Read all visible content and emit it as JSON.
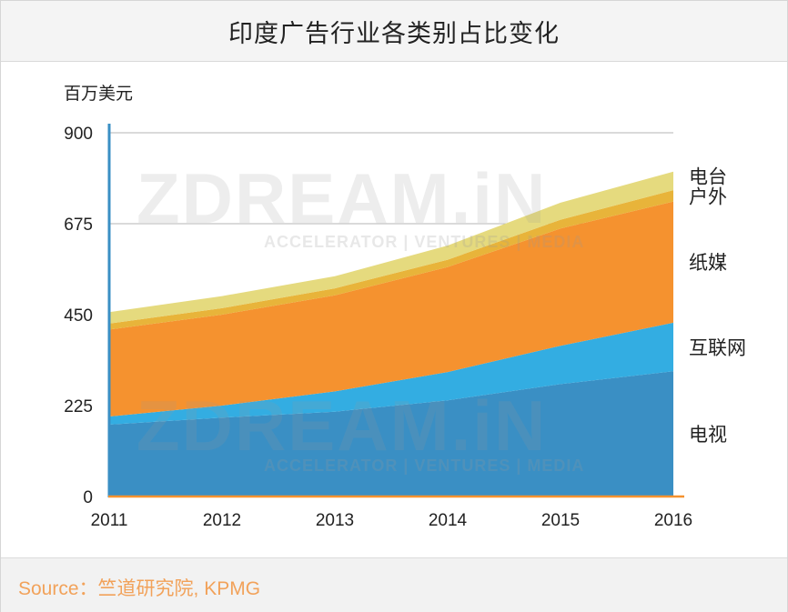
{
  "chart_data": {
    "type": "area",
    "stacked": true,
    "title": "印度广告行业各类别占比变化",
    "ylabel": "百万美元",
    "xlabel": "",
    "x": [
      "2011",
      "2012",
      "2013",
      "2014",
      "2015",
      "2016"
    ],
    "yticks": [
      "0",
      "225",
      "450",
      "675",
      "900"
    ],
    "ylim": [
      0,
      900
    ],
    "grid": true,
    "series": [
      {
        "name": "电视",
        "color": "#3a8fc4",
        "values": [
          178,
          195,
          210,
          238,
          278,
          310
        ]
      },
      {
        "name": "互联网",
        "color": "#33ade2",
        "values": [
          20,
          30,
          50,
          70,
          95,
          120
        ]
      },
      {
        "name": "纸媒",
        "color": "#f5922f",
        "values": [
          215,
          225,
          238,
          260,
          290,
          300
        ]
      },
      {
        "name": "户外",
        "color": "#e8b43a",
        "values": [
          15,
          16,
          17,
          18,
          22,
          28
        ]
      },
      {
        "name": "电台",
        "color": "#e5da7e",
        "values": [
          28,
          30,
          30,
          35,
          42,
          46
        ]
      }
    ],
    "source": "Source：竺道研究院, KPMG"
  },
  "watermark": {
    "brand": "ZDREAM.iN",
    "tagline": "ACCELERATOR | VENTURES | MEDIA"
  }
}
